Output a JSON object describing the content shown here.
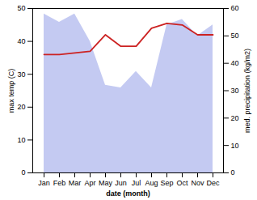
{
  "chart_data": {
    "type": "line",
    "categories": [
      "Jan",
      "Feb",
      "Mar",
      "Apr",
      "May",
      "Jun",
      "Jul",
      "Aug",
      "Sep",
      "Oct",
      "Nov",
      "Dec"
    ],
    "xlabel": "date (month)",
    "ylabel": "max temp (C)",
    "y2label": "med. precipitation (kg/m2)",
    "ylim": [
      0,
      50
    ],
    "yticks": [
      0,
      10,
      20,
      30,
      40,
      50
    ],
    "y2lim": [
      0,
      60
    ],
    "y2ticks": [
      0,
      10,
      20,
      30,
      40,
      50,
      60
    ],
    "grid": false,
    "series": [
      {
        "type": "area",
        "axis": "y2",
        "color": "#b0b8ee",
        "values": [
          58,
          55,
          58,
          48,
          32,
          31,
          37,
          31,
          54,
          56,
          50,
          54
        ]
      },
      {
        "type": "line",
        "color": "#cc2222",
        "values": [
          36,
          36,
          36.5,
          37,
          42,
          38.5,
          38.5,
          44,
          45.5,
          45,
          42,
          42
        ]
      }
    ]
  }
}
